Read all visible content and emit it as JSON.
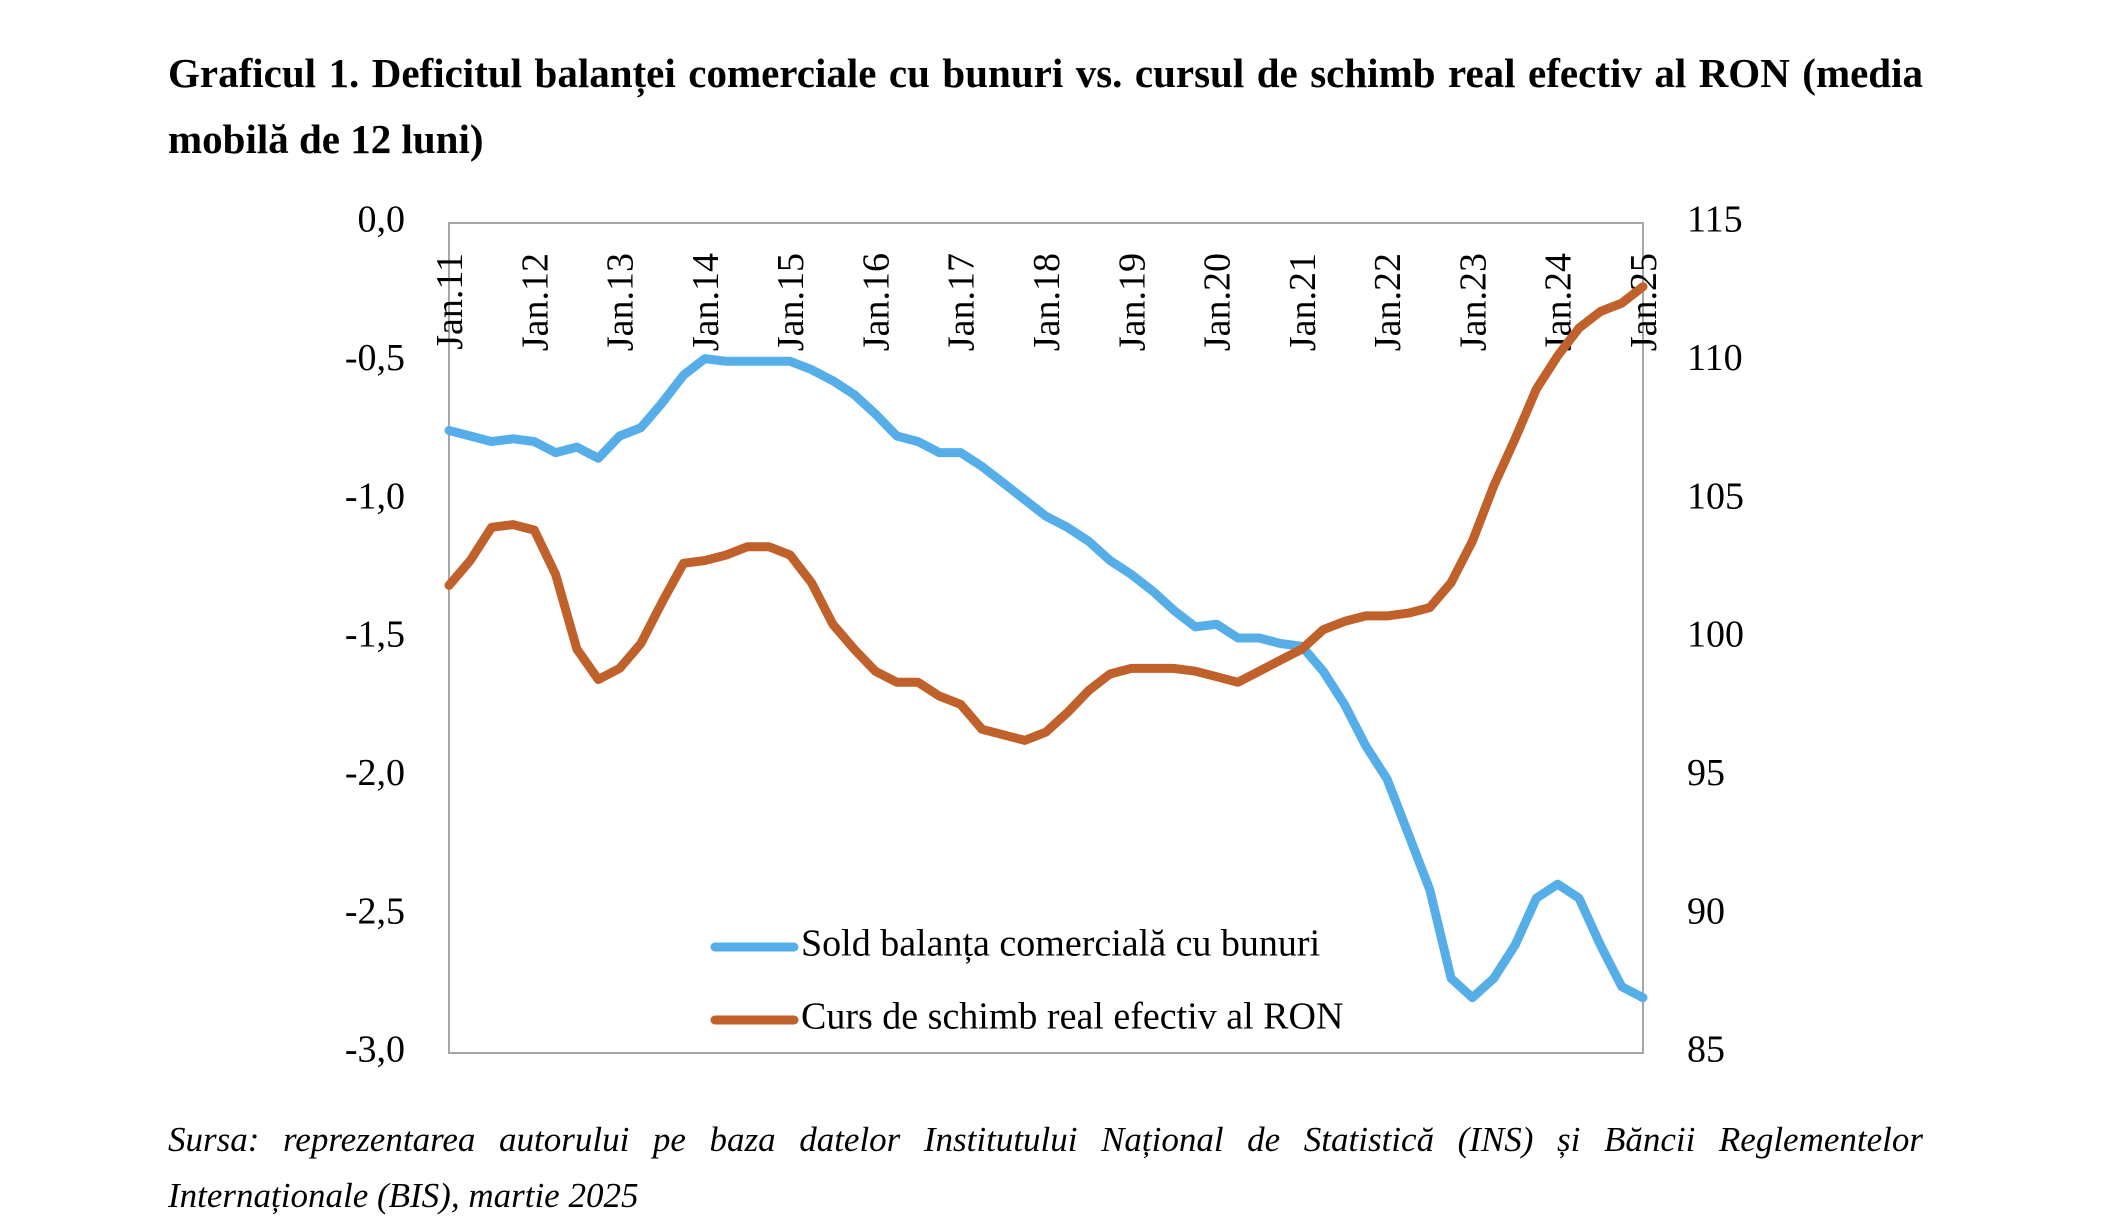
{
  "chart_data": {
    "type": "line",
    "title": "Graficul 1. Deficitul balanței comerciale cu bunuri vs. cursul de schimb real efectiv al RON (media mobilă de 12 luni)",
    "source": "Sursa: reprezentarea autorului pe baza datelor Institutului Național de Statistică (INS) și Băncii Reglementelor Internaționale (BIS), martie 2025",
    "categories": [
      "Jan.11",
      null,
      null,
      null,
      "Jan.12",
      null,
      null,
      null,
      "Jan.13",
      null,
      null,
      null,
      "Jan.14",
      null,
      null,
      null,
      "Jan.15",
      null,
      null,
      null,
      "Jan.16",
      null,
      null,
      null,
      "Jan.17",
      null,
      null,
      null,
      "Jan.18",
      null,
      null,
      null,
      "Jan.19",
      null,
      null,
      null,
      "Jan.20",
      null,
      null,
      null,
      "Jan.21",
      null,
      null,
      null,
      "Jan.22",
      null,
      null,
      null,
      "Jan.23",
      null,
      null,
      null,
      "Jan.24",
      null,
      null,
      null,
      "Jan.25"
    ],
    "series": [
      {
        "name": "Sold balanța comercială cu bunuri",
        "color": "#56aee8",
        "axis": "y",
        "values": [
          -0.75,
          -0.77,
          -0.79,
          -0.78,
          -0.79,
          -0.83,
          -0.81,
          -0.85,
          -0.77,
          -0.74,
          -0.65,
          -0.55,
          -0.49,
          -0.5,
          -0.5,
          -0.5,
          -0.5,
          -0.53,
          -0.57,
          -0.62,
          -0.69,
          -0.77,
          -0.79,
          -0.83,
          -0.83,
          -0.88,
          -0.94,
          -1.0,
          -1.06,
          -1.1,
          -1.15,
          -1.22,
          -1.27,
          -1.33,
          -1.4,
          -1.46,
          -1.45,
          -1.5,
          -1.5,
          -1.52,
          -1.53,
          -1.62,
          -1.74,
          -1.89,
          -2.01,
          -2.21,
          -2.41,
          -2.73,
          -2.8,
          -2.73,
          -2.61,
          -2.44,
          -2.39,
          -2.44,
          -2.61,
          -2.76,
          -2.8
        ]
      },
      {
        "name": "Curs de schimb real efectiv al RON",
        "color": "#c0612b",
        "axis": "y2",
        "values": [
          101.9,
          102.8,
          104.0,
          104.1,
          103.9,
          102.3,
          99.6,
          98.5,
          98.9,
          99.8,
          101.3,
          102.7,
          102.8,
          103.0,
          103.3,
          103.3,
          103.0,
          102.0,
          100.5,
          99.6,
          98.8,
          98.4,
          98.4,
          97.9,
          97.6,
          96.7,
          96.5,
          96.3,
          96.6,
          97.3,
          98.1,
          98.7,
          98.9,
          98.9,
          98.9,
          98.8,
          98.6,
          98.4,
          98.8,
          99.2,
          99.6,
          100.3,
          100.6,
          100.8,
          100.8,
          100.9,
          101.1,
          102.0,
          103.5,
          105.5,
          107.2,
          109.0,
          110.2,
          111.2,
          111.8,
          112.1,
          112.7
        ]
      }
    ],
    "ylim": [
      -3.0,
      0.0
    ],
    "yticks": [
      {
        "value": 0.0,
        "label": "0,0"
      },
      {
        "value": -0.5,
        "label": "-0,5"
      },
      {
        "value": -1.0,
        "label": "-1,0"
      },
      {
        "value": -1.5,
        "label": "-1,5"
      },
      {
        "value": -2.0,
        "label": "-2,0"
      },
      {
        "value": -2.5,
        "label": "-2,5"
      },
      {
        "value": -3.0,
        "label": "-3,0"
      }
    ],
    "y2lim": [
      85,
      115
    ],
    "y2ticks": [
      115,
      110,
      105,
      100,
      95,
      90,
      85
    ],
    "grid": false,
    "legend": "bottom"
  }
}
